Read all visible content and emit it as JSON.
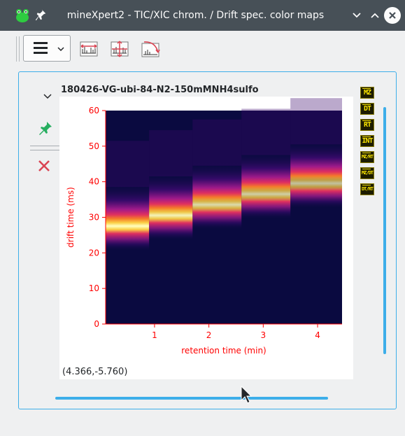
{
  "window": {
    "title": "mineXpert2 - TIC/XIC chrom. / Drift spec. color maps",
    "icons": {
      "app": "frog-app-icon",
      "pin": "pin-icon",
      "min": "chevron-down-icon",
      "max": "chevron-up-icon",
      "close": "close-icon"
    }
  },
  "toolbar": {
    "menu_icon": "hamburger-menu-icon",
    "buttons": [
      "spread-horizontal-icon",
      "spread-vertical-icon",
      "reset-zoom-icon"
    ]
  },
  "plot": {
    "title": "180426-VG-ubi-84-N2-150mMNH4sulfo",
    "coords": "(4.366,-5.760)",
    "axis_buttons": [
      "MZ",
      "DT",
      "RT",
      "INT",
      "MZ/RT",
      "MZ/DT",
      "DT/RT"
    ]
  },
  "chart_data": {
    "type": "heatmap",
    "title": "",
    "xlabel": "retention time (min)",
    "ylabel": "drift time (ms)",
    "xlim": [
      0.1,
      4.45
    ],
    "ylim": [
      0,
      60
    ],
    "x_ticks": [
      "1",
      "2",
      "3",
      "4"
    ],
    "y_ticks": [
      "0",
      "10",
      "20",
      "30",
      "40",
      "50",
      "60"
    ],
    "axis_color": "#ff0000",
    "colormap": [
      "#0a0a40",
      "#3b0a6e",
      "#9e1a8a",
      "#e0305f",
      "#f57a2a",
      "#fbd045",
      "#ffffc0"
    ],
    "bands": [
      {
        "rt_start": 0.1,
        "rt_end": 0.9,
        "dt_center": 27.5,
        "dt_width": 4,
        "peak": 1.0
      },
      {
        "rt_start": 0.9,
        "rt_end": 1.7,
        "dt_center": 30.5,
        "dt_width": 4,
        "peak": 0.95
      },
      {
        "rt_start": 1.7,
        "rt_end": 2.6,
        "dt_center": 33.5,
        "dt_width": 4,
        "peak": 0.85
      },
      {
        "rt_start": 2.6,
        "rt_end": 3.5,
        "dt_center": 36.5,
        "dt_width": 4,
        "peak": 0.8
      },
      {
        "rt_start": 3.5,
        "rt_end": 4.45,
        "dt_center": 39.5,
        "dt_width": 4,
        "peak": 0.75
      }
    ]
  }
}
